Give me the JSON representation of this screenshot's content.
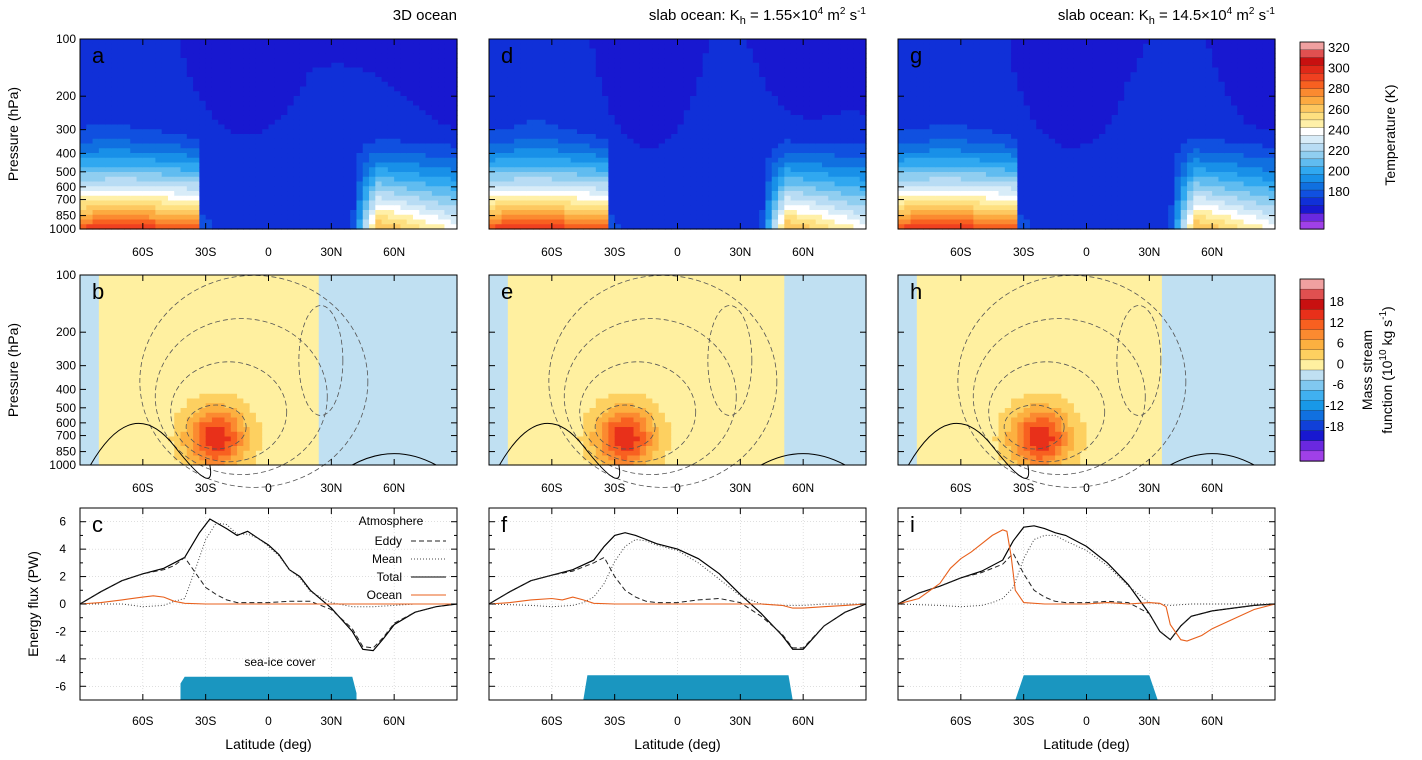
{
  "figure": {
    "column_titles": [
      "3D ocean",
      "slab ocean: K",
      "slab ocean: K"
    ],
    "column_title_parts": [
      {
        "main": "3D ocean"
      },
      {
        "main": "slab ocean: K",
        "sub": "h",
        "rest": " = 1.55×10",
        "sup": "4",
        "rest2": " m",
        "sup2": "2",
        "rest3": " s",
        "sup3": "-1"
      },
      {
        "main": "slab ocean: K",
        "sub": "h",
        "rest": " = 14.5×10",
        "sup": "4",
        "rest2": " m",
        "sup2": "2",
        "rest3": " s",
        "sup3": "-1"
      }
    ],
    "panel_letters": [
      [
        "a",
        "d",
        "g"
      ],
      [
        "b",
        "e",
        "h"
      ],
      [
        "c",
        "f",
        "i"
      ]
    ],
    "row_ylabels": [
      "Pressure (hPa)",
      "Pressure (hPa)",
      "Energy flux (PW)"
    ],
    "xlabel": "Latitude (deg)",
    "lat_tick_labels": [
      "60S",
      "30S",
      "0",
      "30N",
      "60N"
    ],
    "pressure_tick_labels": [
      "100",
      "200",
      "300",
      "400",
      "500",
      "600",
      "700",
      "850",
      "1000"
    ],
    "flux_tick_labels": [
      "6",
      "4",
      "2",
      "0",
      "-2",
      "-4",
      "-6"
    ],
    "temperature_colorbar": {
      "label": "Temperature (K)",
      "tick_labels": [
        "320",
        "300",
        "280",
        "260",
        "240",
        "220",
        "200",
        "180"
      ],
      "colors": [
        "#f0a0a0",
        "#e05050",
        "#c81010",
        "#e02818",
        "#f04020",
        "#f86020",
        "#fb8a30",
        "#fcaa40",
        "#fdc860",
        "#fee080",
        "#fff0a8",
        "#ffffff",
        "#d8ecf8",
        "#b8dcf4",
        "#90cef0",
        "#60bcf0",
        "#30a8f0",
        "#1890e8",
        "#1070e0",
        "#1050e0",
        "#1030d8",
        "#1818d0",
        "#6a28e0",
        "#a040e8"
      ]
    },
    "stream_colorbar": {
      "label_line1": "Mass stream",
      "label_line2": "function (10",
      "label_sup": "10",
      "label_rest": " kg s",
      "label_sup2": "-1",
      "tick_labels": [
        "18",
        "12",
        "6",
        "0",
        "-6",
        "-12",
        "-18"
      ],
      "colors": [
        "#f0a0a0",
        "#e05050",
        "#c81010",
        "#e8301a",
        "#f86020",
        "#fb8a30",
        "#fcb040",
        "#fdd060",
        "#fff0a0",
        "#c0e0f2",
        "#80c8f0",
        "#40b0f0",
        "#1898e8",
        "#1070e0",
        "#1040d8",
        "#1818d0",
        "#6a28e0",
        "#a040e8"
      ]
    },
    "legend": {
      "title": "Atmosphere",
      "items": [
        "Eddy",
        "Mean",
        "Total",
        "Ocean"
      ],
      "line_colors": [
        "#222222",
        "#444444",
        "#000000",
        "#e8601c"
      ]
    },
    "sea_ice_label": "sea-ice cover",
    "sea_ice_color": "#1a96c0",
    "ocean_color": "#e8601c"
  },
  "chart_data": [
    {
      "type": "line",
      "panel": "c",
      "title": "3D ocean",
      "xlabel": "Latitude (deg)",
      "ylabel": "Energy flux (PW)",
      "xlim": [
        -90,
        90
      ],
      "ylim": [
        -7,
        7
      ],
      "series": [
        {
          "name": "Total",
          "x": [
            -90,
            -80,
            -70,
            -60,
            -50,
            -40,
            -33,
            -28,
            -20,
            -15,
            -10,
            -5,
            0,
            5,
            10,
            15,
            20,
            30,
            40,
            45,
            50,
            55,
            60,
            70,
            80,
            90
          ],
          "y": [
            0,
            0.9,
            1.7,
            2.2,
            2.6,
            3.4,
            5.2,
            6.2,
            5.5,
            5.0,
            5.3,
            4.8,
            4.3,
            3.6,
            2.5,
            2.0,
            1.0,
            -0.3,
            -2.0,
            -3.3,
            -3.4,
            -2.5,
            -1.5,
            -0.6,
            -0.2,
            0
          ]
        },
        {
          "name": "Eddy",
          "x": [
            -90,
            -80,
            -70,
            -60,
            -50,
            -45,
            -40,
            -35,
            -30,
            -25,
            -20,
            -15,
            -10,
            0,
            10,
            20,
            30,
            40,
            45,
            50,
            55,
            60,
            70,
            80,
            90
          ],
          "y": [
            0,
            0.9,
            1.7,
            2.2,
            2.5,
            2.8,
            3.4,
            2.3,
            1.2,
            0.7,
            0.3,
            0.1,
            0.1,
            0.1,
            0.2,
            0.2,
            -0.4,
            -1.8,
            -3.1,
            -3.2,
            -2.4,
            -1.4,
            -0.6,
            -0.2,
            0
          ]
        },
        {
          "name": "Mean",
          "x": [
            -90,
            -70,
            -60,
            -50,
            -45,
            -40,
            -35,
            -30,
            -25,
            -20,
            -15,
            -10,
            -5,
            0,
            5,
            10,
            15,
            20,
            30,
            40,
            45,
            50,
            60,
            70,
            80,
            90
          ],
          "y": [
            0,
            0,
            -0.2,
            -0.1,
            0.2,
            0.4,
            2.5,
            4.7,
            5.9,
            5.8,
            5.1,
            5.1,
            4.8,
            4.2,
            3.5,
            2.5,
            1.9,
            0.9,
            0.1,
            -0.2,
            -0.2,
            -0.2,
            -0.1,
            0,
            0,
            0
          ]
        },
        {
          "name": "Ocean",
          "x": [
            -90,
            -80,
            -70,
            -60,
            -55,
            -50,
            -45,
            -40,
            -30,
            -20,
            -10,
            0,
            10,
            20,
            30,
            40,
            50,
            60,
            70,
            80,
            90
          ],
          "y": [
            0,
            0.1,
            0.3,
            0.5,
            0.6,
            0.5,
            0.2,
            0.05,
            0,
            0,
            0,
            0,
            0,
            0,
            0,
            0,
            0,
            0,
            0,
            0,
            0
          ]
        }
      ],
      "sea_ice": {
        "x": [
          -42,
          -40,
          40,
          42
        ],
        "y": [
          -5.8,
          -5.3,
          -5.3,
          -6.5
        ]
      }
    },
    {
      "type": "line",
      "panel": "f",
      "title": "slab ocean: Kh = 1.55×10^4 m^2 s^-1",
      "xlabel": "Latitude (deg)",
      "xlim": [
        -90,
        90
      ],
      "ylim": [
        -7,
        7
      ],
      "series": [
        {
          "name": "Total",
          "x": [
            -90,
            -80,
            -70,
            -60,
            -50,
            -40,
            -35,
            -30,
            -25,
            -20,
            -15,
            -10,
            0,
            10,
            20,
            30,
            40,
            50,
            55,
            60,
            70,
            80,
            90
          ],
          "y": [
            0,
            0.9,
            1.7,
            2.1,
            2.5,
            3.2,
            4.2,
            5.0,
            5.2,
            5.0,
            4.7,
            4.4,
            4.0,
            3.3,
            2.2,
            0.7,
            -0.7,
            -2.3,
            -3.3,
            -3.3,
            -1.6,
            -0.6,
            0
          ]
        },
        {
          "name": "Eddy",
          "x": [
            -90,
            -80,
            -70,
            -60,
            -50,
            -40,
            -35,
            -30,
            -25,
            -20,
            -15,
            -10,
            0,
            10,
            20,
            30,
            40,
            50,
            55,
            60,
            70,
            80,
            90
          ],
          "y": [
            0,
            0.9,
            1.7,
            2.1,
            2.4,
            3.0,
            3.4,
            2.0,
            1.0,
            0.5,
            0.2,
            0.1,
            0.1,
            0.3,
            0.4,
            0.1,
            -0.9,
            -2.2,
            -3.2,
            -3.2,
            -1.6,
            -0.6,
            0
          ]
        },
        {
          "name": "Mean",
          "x": [
            -90,
            -70,
            -60,
            -50,
            -45,
            -40,
            -35,
            -30,
            -25,
            -20,
            -15,
            -10,
            0,
            10,
            20,
            30,
            40,
            50,
            60,
            70,
            80,
            90
          ],
          "y": [
            0,
            -0.1,
            -0.2,
            -0.1,
            0.1,
            0.5,
            1.5,
            3.1,
            4.2,
            4.7,
            4.6,
            4.3,
            3.9,
            3.0,
            1.8,
            0.6,
            0,
            -0.1,
            -0.1,
            0,
            0,
            0
          ]
        },
        {
          "name": "Ocean",
          "x": [
            -90,
            -80,
            -70,
            -60,
            -55,
            -50,
            -45,
            -40,
            -30,
            -20,
            -10,
            0,
            10,
            20,
            30,
            40,
            50,
            55,
            60,
            70,
            80,
            90
          ],
          "y": [
            0,
            0.1,
            0.3,
            0.4,
            0.3,
            0.5,
            0.3,
            0.05,
            0,
            0,
            0,
            0,
            0,
            0,
            0,
            0,
            -0.1,
            -0.3,
            -0.3,
            -0.2,
            -0.1,
            0
          ]
        }
      ],
      "sea_ice": {
        "x": [
          -45,
          -43,
          53,
          55
        ],
        "y": [
          -7,
          -5.2,
          -5.2,
          -7
        ]
      }
    },
    {
      "type": "line",
      "panel": "i",
      "title": "slab ocean: Kh = 14.5×10^4 m^2 s^-1",
      "xlabel": "Latitude (deg)",
      "xlim": [
        -90,
        90
      ],
      "ylim": [
        -7,
        7
      ],
      "series": [
        {
          "name": "Total",
          "x": [
            -90,
            -80,
            -70,
            -60,
            -50,
            -40,
            -35,
            -30,
            -25,
            -20,
            -15,
            -10,
            0,
            10,
            20,
            30,
            35,
            40,
            45,
            50,
            60,
            70,
            80,
            90
          ],
          "y": [
            0,
            0.8,
            1.3,
            1.9,
            2.4,
            3.2,
            4.6,
            5.6,
            5.7,
            5.5,
            5.2,
            5.0,
            4.2,
            3.0,
            1.4,
            -0.7,
            -2.0,
            -2.6,
            -1.6,
            -0.9,
            -0.5,
            -0.3,
            -0.1,
            0
          ]
        },
        {
          "name": "Eddy",
          "x": [
            -90,
            -80,
            -70,
            -60,
            -50,
            -40,
            -35,
            -30,
            -25,
            -20,
            -15,
            -10,
            0,
            10,
            20,
            30,
            35,
            40,
            45,
            50,
            60,
            70,
            80,
            90
          ],
          "y": [
            0,
            0.8,
            1.3,
            1.9,
            2.3,
            2.9,
            3.7,
            2.2,
            1.0,
            0.5,
            0.2,
            0.1,
            0.1,
            0.2,
            0.1,
            -0.7,
            -2.0,
            -2.6,
            -1.6,
            -0.9,
            -0.5,
            -0.3,
            -0.1,
            0
          ]
        },
        {
          "name": "Mean",
          "x": [
            -90,
            -70,
            -60,
            -50,
            -45,
            -40,
            -35,
            -30,
            -25,
            -20,
            -15,
            -10,
            0,
            10,
            20,
            30,
            40,
            50,
            60,
            70,
            80,
            90
          ],
          "y": [
            0,
            -0.1,
            -0.2,
            -0.1,
            0.1,
            0.4,
            1.2,
            3.3,
            4.7,
            5.0,
            5.0,
            4.6,
            3.9,
            2.8,
            1.3,
            0.1,
            -0.1,
            0,
            0,
            0,
            0,
            0
          ]
        },
        {
          "name": "Ocean",
          "x": [
            -90,
            -80,
            -70,
            -65,
            -60,
            -55,
            -50,
            -45,
            -40,
            -38,
            -36,
            -34,
            -30,
            -20,
            -10,
            0,
            10,
            20,
            30,
            35,
            38,
            40,
            45,
            48,
            55,
            60,
            70,
            80,
            90
          ],
          "y": [
            0,
            0.4,
            1.5,
            2.6,
            3.3,
            3.8,
            4.4,
            5.0,
            5.4,
            5.3,
            3.5,
            1.0,
            0.1,
            0,
            0,
            0,
            0.1,
            0,
            0.1,
            0.05,
            -0.2,
            -1.5,
            -2.6,
            -2.7,
            -2.3,
            -1.8,
            -1.1,
            -0.4,
            0
          ]
        }
      ],
      "sea_ice": {
        "x": [
          -34,
          -30,
          30,
          34
        ],
        "y": [
          -7,
          -5.2,
          -5.2,
          -7
        ]
      }
    }
  ]
}
